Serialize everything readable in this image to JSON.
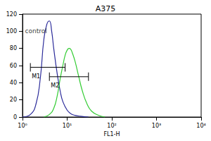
{
  "chart_data": {
    "type": "line",
    "title": "A375",
    "x_label": "FL1-H",
    "log": "x",
    "xlim": [
      1,
      10000
    ],
    "xticks": [
      {
        "value": 1,
        "label": "10⁰"
      },
      {
        "value": 10,
        "label": "10¹"
      },
      {
        "value": 100,
        "label": "10²"
      },
      {
        "value": 1000,
        "label": "10³"
      },
      {
        "value": 10000,
        "label": "10⁴"
      }
    ],
    "ylim": [
      0,
      120
    ],
    "yticks": [
      0,
      20,
      40,
      60,
      80,
      100,
      120
    ],
    "grid": false,
    "series": [
      {
        "color": "#2b2b9a",
        "x": [
          1,
          1.5,
          2,
          2.5,
          3,
          3.5,
          4,
          4.5,
          5,
          6,
          7,
          8,
          10,
          12,
          15,
          20,
          30
        ],
        "values": [
          0,
          3,
          15,
          45,
          90,
          108,
          112,
          100,
          80,
          50,
          30,
          18,
          8,
          4,
          2,
          1,
          0
        ]
      },
      {
        "color": "#33cc33",
        "x": [
          3,
          4,
          5,
          6,
          7,
          8,
          9,
          10,
          11,
          12,
          13,
          15,
          18,
          22,
          28,
          35,
          50,
          70
        ],
        "values": [
          0,
          3,
          10,
          25,
          45,
          60,
          72,
          78,
          80,
          79,
          75,
          65,
          48,
          30,
          15,
          7,
          2,
          0
        ]
      }
    ],
    "gates": [
      {
        "label": "M1",
        "x": [
          1.5,
          9
        ],
        "y": 58
      },
      {
        "label": "M2",
        "x": [
          4,
          30
        ],
        "y": 47
      }
    ],
    "annotations": [
      {
        "text": "control",
        "x": 2,
        "y": 100
      }
    ]
  }
}
